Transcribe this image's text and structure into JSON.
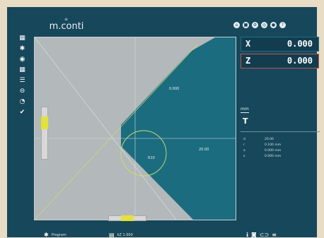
{
  "logo": {
    "mark": "≡",
    "text": "m.conti"
  },
  "header": {
    "icons": [
      {
        "name": "home-icon",
        "glyph": "⌂"
      },
      {
        "name": "save-icon",
        "glyph": "■"
      },
      {
        "name": "settings-icon",
        "glyph": "⚙"
      },
      {
        "name": "globe-icon",
        "glyph": "◎"
      },
      {
        "name": "profile-icon",
        "glyph": "●"
      },
      {
        "name": "help-icon",
        "glyph": "?"
      }
    ]
  },
  "left_tools": [
    {
      "name": "grid-icon",
      "glyph": "▦"
    },
    {
      "name": "settings-icon",
      "glyph": "✱"
    },
    {
      "name": "target-icon",
      "glyph": "◉"
    },
    {
      "name": "layout-icon",
      "glyph": "▦"
    },
    {
      "name": "list-icon",
      "glyph": "☰"
    },
    {
      "name": "minus-icon",
      "glyph": "⊖"
    },
    {
      "name": "pie-icon",
      "glyph": "◔"
    },
    {
      "name": "check-icon",
      "glyph": "✔"
    }
  ],
  "coords": {
    "x": {
      "label": "X",
      "value": "0.000"
    },
    "z": {
      "label": "Z",
      "value": "0.000"
    }
  },
  "sidebar": {
    "unit": "mm",
    "tool": "T",
    "info": [
      {
        "key": "d",
        "value": "20.00"
      },
      {
        "key": "r",
        "value": "0.100 mm"
      },
      {
        "key": "a",
        "value": "0.000 mm"
      },
      {
        "key": "z",
        "value": "0.000 mm"
      }
    ]
  },
  "canvas": {
    "labels": {
      "diag": "0.000",
      "right": "20.00",
      "radius": "R10"
    },
    "vslider_level": 0.3,
    "hslider_level": 0.5,
    "colors": {
      "gray": "#b3b8ba",
      "teal": "#1c6c80",
      "accent": "#c9e06b",
      "slider": "#e3e13a"
    }
  },
  "bottom": {
    "left_text": "Program",
    "mid_text": "kZ 1.000",
    "right_icons": [
      {
        "name": "info-icon",
        "glyph": "ℹ"
      },
      {
        "name": "camera-icon",
        "glyph": "◙"
      },
      {
        "name": "link-icon",
        "glyph": "⊂⊃"
      },
      {
        "name": "menu-icon",
        "glyph": "≡"
      }
    ]
  }
}
